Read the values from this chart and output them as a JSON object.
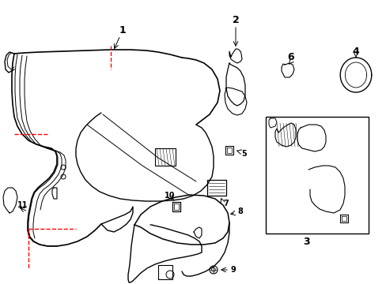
{
  "bg": "#ffffff",
  "lc": "#000000",
  "rc": "#ff0000",
  "figw": 4.89,
  "figh": 3.6,
  "dpi": 100
}
